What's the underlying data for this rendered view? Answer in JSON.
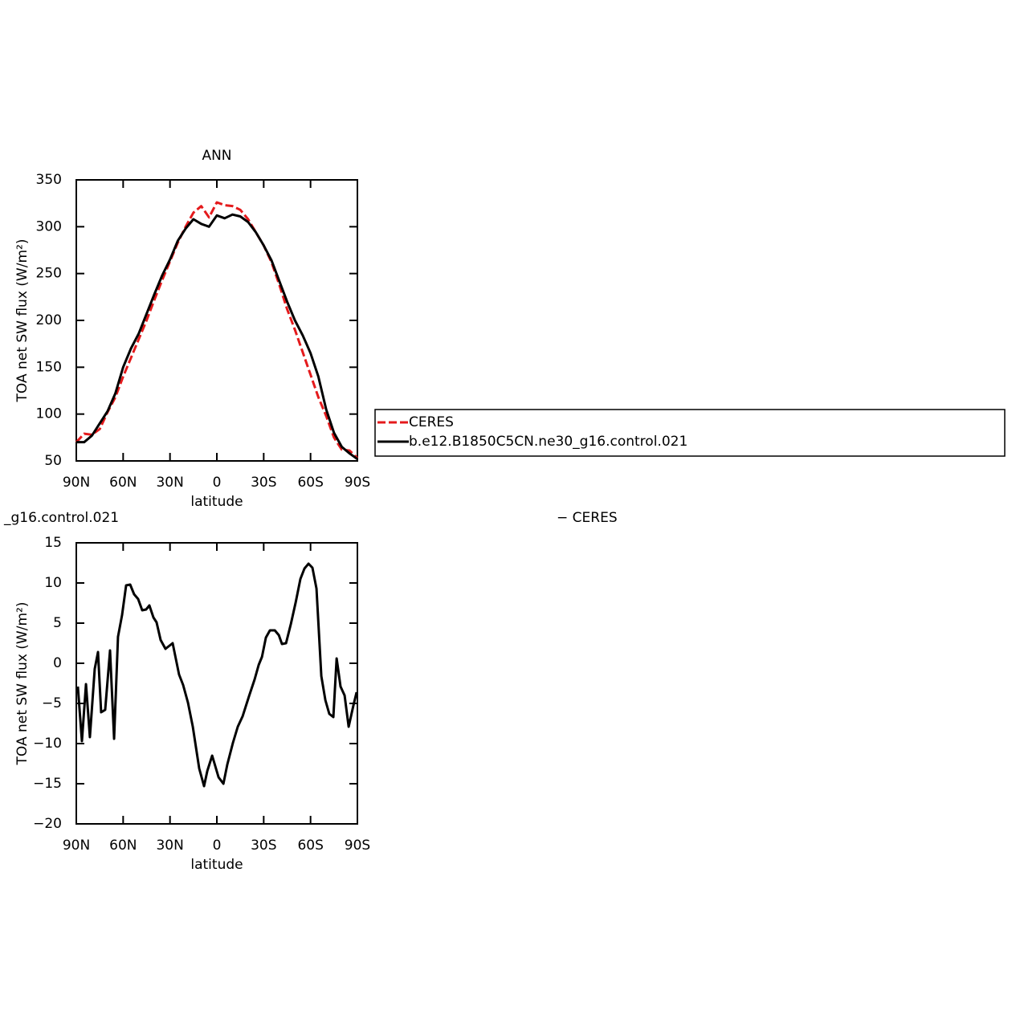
{
  "chart_data": [
    {
      "type": "line",
      "title": "ANN",
      "x_label": "latitude",
      "y_label": "TOA net SW flux (W/m²)",
      "x": [
        90,
        85,
        80,
        75,
        70,
        65,
        60,
        55,
        50,
        45,
        40,
        35,
        30,
        25,
        20,
        15,
        10,
        5,
        0,
        -5,
        -10,
        -15,
        -20,
        -25,
        -30,
        -35,
        -40,
        -45,
        -50,
        -55,
        -60,
        -65,
        -70,
        -75,
        -80,
        -85,
        -90
      ],
      "series": [
        {
          "name": "CERES",
          "color": "#e41a1c",
          "style": "dashed",
          "values": [
            70,
            79,
            78,
            84,
            102,
            118,
            140,
            160,
            180,
            200,
            222,
            243,
            263,
            283,
            300,
            315,
            322,
            310,
            326,
            323,
            322,
            318,
            308,
            294,
            280,
            262,
            238,
            212,
            190,
            166,
            142,
            118,
            98,
            75,
            62,
            61,
            53
          ]
        },
        {
          "name": "b.e12.B1850C5CN.ne30_g16.control.021",
          "color": "#000000",
          "style": "solid",
          "values": [
            70,
            70,
            77,
            90,
            103,
            122,
            150,
            170,
            186,
            207,
            228,
            248,
            265,
            285,
            298,
            308,
            303,
            300,
            312,
            309,
            313,
            311,
            305,
            294,
            280,
            264,
            242,
            220,
            200,
            184,
            165,
            140,
            105,
            80,
            65,
            58,
            52
          ]
        }
      ],
      "xlim": [
        90,
        -90
      ],
      "xticks": [
        {
          "value": 90,
          "label": "90N"
        },
        {
          "value": 60,
          "label": "60N"
        },
        {
          "value": 30,
          "label": "30N"
        },
        0,
        {
          "value": -30,
          "label": "30S"
        },
        {
          "value": -60,
          "label": "60S"
        },
        {
          "value": -90,
          "label": "90S"
        }
      ],
      "ylim": [
        50,
        350
      ],
      "yticks": [
        50,
        100,
        150,
        200,
        250,
        300,
        350
      ],
      "legend": "right"
    },
    {
      "type": "line",
      "title_left": "_g16.control.021",
      "title_right": "− CERES",
      "x_label": "latitude",
      "y_label": "TOA net SW flux (W/m²)",
      "x": [
        89,
        86.4,
        83.8,
        81.3,
        78.2,
        76.1,
        74.1,
        71.5,
        68.4,
        65.8,
        63.3,
        60.7,
        58.1,
        55.5,
        53,
        50.4,
        47.8,
        45.3,
        43.2,
        40.6,
        38.6,
        36,
        32.9,
        28.3,
        24.2,
        21.6,
        18.5,
        15.4,
        11.3,
        8.2,
        6.1,
        3,
        -1.1,
        -4.2,
        -6.7,
        -10.3,
        -13.4,
        -16.5,
        -20.6,
        -24.2,
        -26.8,
        -28.9,
        -31.4,
        -34,
        -37.1,
        -39.7,
        -41.7,
        -44.3,
        -47.4,
        -50.5,
        -53.5,
        -56.1,
        -58.7,
        -61.2,
        -63.8,
        -66.9,
        -69.5,
        -72,
        -74.6,
        -76.7,
        -79.2,
        -81.8,
        -84.4,
        -87.5,
        -89.5
      ],
      "series": [
        {
          "color": "#000000",
          "style": "solid",
          "values": [
            -2.9,
            -9.7,
            -2.6,
            -9.2,
            -0.7,
            1.4,
            -6.1,
            -5.8,
            1.6,
            -9.4,
            3.3,
            6,
            9.7,
            9.8,
            8.6,
            8,
            6.6,
            6.7,
            7.2,
            5.7,
            5.1,
            2.9,
            1.8,
            2.5,
            -1.4,
            -2.7,
            -4.9,
            -7.9,
            -13.1,
            -15.3,
            -13.4,
            -11.5,
            -14.2,
            -15,
            -12.6,
            -9.9,
            -7.9,
            -6.6,
            -4.1,
            -2,
            -0.2,
            0.8,
            3.2,
            4.1,
            4.1,
            3.5,
            2.4,
            2.5,
            4.9,
            7.6,
            10.5,
            11.8,
            12.4,
            11.9,
            9.3,
            -1.6,
            -4.6,
            -6.3,
            -6.7,
            0.6,
            -2.9,
            -4,
            -7.9,
            -5.2,
            -3.6
          ]
        }
      ],
      "xlim": [
        90,
        -90
      ],
      "xticks": [
        {
          "value": 90,
          "label": "90N"
        },
        {
          "value": 60,
          "label": "60N"
        },
        {
          "value": 30,
          "label": "30N"
        },
        0,
        {
          "value": -30,
          "label": "30S"
        },
        {
          "value": -60,
          "label": "60S"
        },
        {
          "value": -90,
          "label": "90S"
        }
      ],
      "ylim": [
        -20,
        15
      ],
      "yticks": [
        {
          "value": -20,
          "label": "−20"
        },
        {
          "value": -15,
          "label": "−15"
        },
        {
          "value": -10,
          "label": "−10"
        },
        {
          "value": -5,
          "label": "−5"
        },
        0,
        5,
        10,
        15
      ]
    }
  ]
}
